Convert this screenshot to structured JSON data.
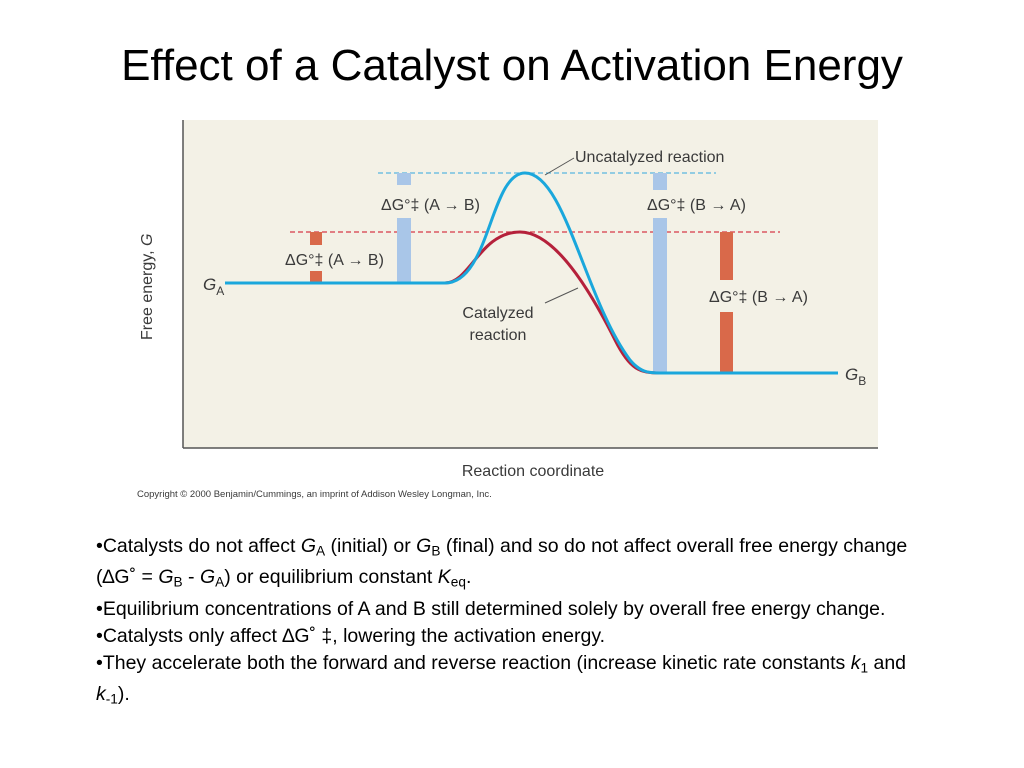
{
  "title": "Effect of a Catalyst on Activation Energy",
  "colors": {
    "background": "#f3f1e6",
    "uncatalyzed": "#1aa7dc",
    "catalyzed": "#b5213b",
    "baseline": "#1aa7dc",
    "blue_bar": "#a9c6e8",
    "orange_bar": "#d9694a",
    "red_dashed": "#d63a48",
    "blue_dashed": "#57b7e0"
  },
  "diagram": {
    "y_axis_label": "Free energy, ",
    "y_axis_symbol": "G",
    "x_axis_label": "Reaction coordinate",
    "g_a": {
      "symbol": "G",
      "sub": "A"
    },
    "g_b": {
      "symbol": "G",
      "sub": "B"
    },
    "uncatalyzed_label": "Uncatalyzed reaction",
    "catalyzed_label_line1": "Catalyzed",
    "catalyzed_label_line2": "reaction",
    "delta_g_prefix": "ΔG°‡",
    "forward_label": "(A → B)",
    "reverse_label": "(B → A)",
    "copyright": "Copyright © 2000 Benjamin/Cummings, an imprint of Addison Wesley Longman, Inc."
  },
  "bullets": {
    "b1_pre": "•Catalysts do not affect ",
    "b1_ga": "G",
    "b1_ga_sub": "A",
    "b1_mid": " (initial) or ",
    "b1_gb": "G",
    "b1_gb_sub": "B",
    "b1_post": " (final) and so do not affect overall free energy change (",
    "b1_delta": "∆G˚",
    "b1_eq": " = ",
    "b1_gb2": "G",
    "b1_gb2_sub": "B",
    "b1_minus": " - ",
    "b1_ga2": "G",
    "b1_ga2_sub": "A",
    "b1_end": ") or equilibrium constant ",
    "b1_k": "K",
    "b1_k_sub": "eq",
    "b1_period": ".",
    "b2": "•Equilibrium concentrations of A and B still determined solely by overall free energy change.",
    "b3_pre": "•Catalysts only affect ",
    "b3_delta": "∆G˚ ‡",
    "b3_post": ", lowering the activation energy.",
    "b4_pre": "•They accelerate both the forward and reverse reaction (increase kinetic rate constants ",
    "b4_k1": "k",
    "b4_k1_sub": "1",
    "b4_and": " and ",
    "b4_k2": "k",
    "b4_k2_sub": "-1",
    "b4_end": ")."
  }
}
